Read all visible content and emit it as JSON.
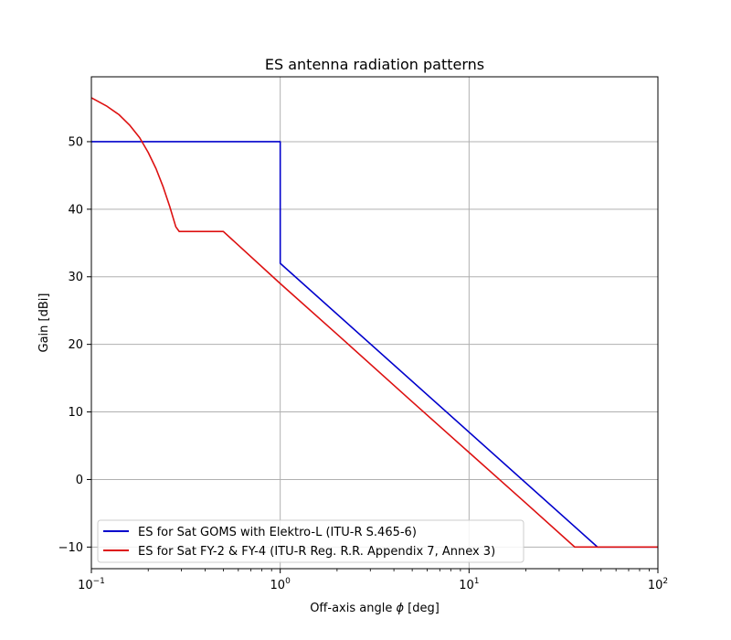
{
  "chart_data": {
    "type": "line",
    "title": "ES antenna radiation patterns",
    "xlabel_prefix": "Off-axis angle ",
    "xlabel_symbol": "ϕ",
    "xlabel_suffix": " [deg]",
    "ylabel": "Gain [dBi]",
    "xscale": "log",
    "xlim": [
      0.1,
      100
    ],
    "ylim": [
      -13.2,
      59.6
    ],
    "grid": true,
    "legend_placement": "lower-left",
    "x_ticks": [
      {
        "base": "10",
        "exp": "−1"
      },
      {
        "base": "10",
        "exp": "0"
      },
      {
        "base": "10",
        "exp": "1"
      },
      {
        "base": "10",
        "exp": "2"
      }
    ],
    "x_tick_values": [
      0.1,
      1,
      10,
      100
    ],
    "y_ticks": [
      "−10",
      "0",
      "10",
      "20",
      "30",
      "40",
      "50"
    ],
    "y_tick_values": [
      -10,
      0,
      10,
      20,
      30,
      40,
      50
    ],
    "series": [
      {
        "name": "ES for Sat GOMS with Elektro-L (ITU-R S.465-6)",
        "color": "#0000cc",
        "x": [
          0.1,
          1.0,
          1.0,
          47.9,
          100
        ],
        "y": [
          50,
          50,
          32,
          -10,
          -10
        ]
      },
      {
        "name": "ES for Sat FY-2 & FY-4 (ITU-R Reg. R.R. Appendix 7, Annex 3)",
        "color": "#dd1111",
        "x": [
          0.1,
          0.12,
          0.14,
          0.16,
          0.18,
          0.2,
          0.22,
          0.24,
          0.26,
          0.28,
          0.292,
          0.5,
          1.0,
          2.0,
          5.0,
          10,
          20,
          36.3,
          100
        ],
        "y": [
          56.5,
          55.3,
          54.0,
          52.4,
          50.6,
          48.4,
          46.0,
          43.3,
          40.4,
          37.4,
          36.7,
          36.7,
          29,
          21.5,
          11.5,
          4,
          -3.5,
          -10,
          -10
        ]
      }
    ]
  }
}
